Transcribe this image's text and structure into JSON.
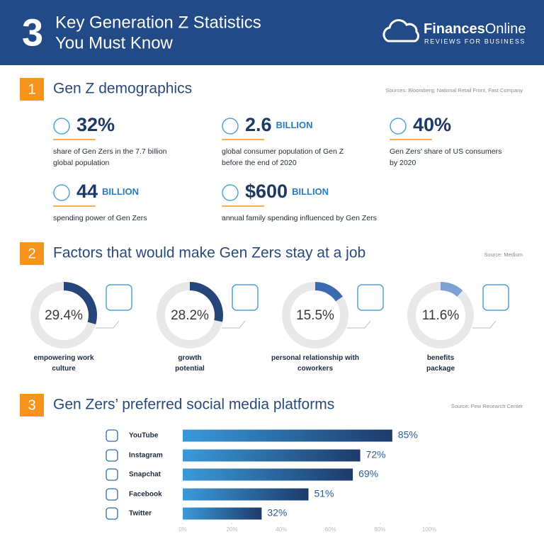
{
  "header": {
    "number": "3",
    "title_line1": "Key Generation Z Statistics",
    "title_line2": "You Must Know",
    "brand_bold": "Finances",
    "brand_light": "Online",
    "tagline": "REVIEWS FOR BUSINESS"
  },
  "demographics": {
    "number": "1",
    "title": "Gen Z demographics",
    "source": "Sources: Bloomberg, National Retail Front, Fast Company",
    "stats": [
      {
        "figure": "32%",
        "description": [
          "share of Gen Zers in the 7.7 billion",
          "global population"
        ]
      },
      {
        "figure": "2.6",
        "unit": "BILLION",
        "description": [
          "global consumer population of Gen Z",
          "before the end of 2020"
        ]
      },
      {
        "figure": "40%",
        "description": [
          "Gen Zers’ share of US consumers",
          "by 2020"
        ]
      },
      {
        "figure": "44",
        "unit": "BILLION",
        "description": [
          "spending power of Gen Zers"
        ]
      },
      {
        "figure": "$600",
        "unit": "BILLION",
        "description": [
          "annual family spending influenced by Gen Zers"
        ]
      }
    ]
  },
  "chart_data": [
    {
      "type": "donut",
      "number": "2",
      "title": "Factors that would make Gen Zers stay at a job",
      "source": "Source: Medium",
      "categories": [
        "empowering work culture",
        "growth potential",
        "personal relationship with coworkers",
        "benefits package"
      ],
      "values": [
        29.4,
        28.2,
        15.5,
        11.6
      ],
      "value_labels": [
        "29.4%",
        "28.2%",
        "15.5%",
        "11.6%"
      ],
      "colors": [
        "#26467a",
        "#26467a",
        "#3a6bb0",
        "#7ea1d4"
      ]
    },
    {
      "type": "hbar",
      "number": "3",
      "title": "Gen Zers’ preferred social media platforms",
      "source": "Source: Pew Research Center",
      "categories": [
        "YouTube",
        "Instagram",
        "Snapchat",
        "Facebook",
        "Twitter"
      ],
      "values": [
        85,
        72,
        69,
        51,
        32
      ],
      "value_labels": [
        "85%",
        "72%",
        "69%",
        "51%",
        "32%"
      ],
      "gradient": [
        "#3a9ad9",
        "#1d3a6a"
      ],
      "xlim": [
        0,
        100
      ],
      "xticks": [
        {
          "value": 0,
          "label": "0%"
        },
        {
          "value": 20,
          "label": "20%"
        },
        {
          "value": 40,
          "label": "40%"
        },
        {
          "value": 60,
          "label": "60%"
        },
        {
          "value": 80,
          "label": "80%"
        },
        {
          "value": 100,
          "label": "100%"
        }
      ]
    }
  ]
}
